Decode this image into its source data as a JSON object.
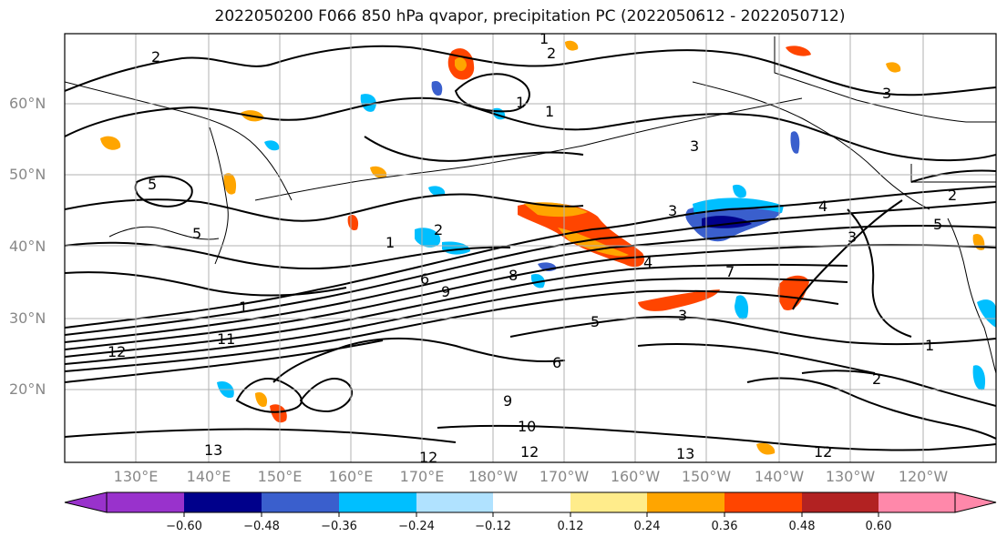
{
  "title": "2022050200 F066 850 hPa qvapor, precipitation PC (2022050612 - 2022050712)",
  "lat_labels": [
    "60°N",
    "50°N",
    "40°N",
    "30°N",
    "20°N"
  ],
  "lon_labels": [
    "130°E",
    "140°E",
    "150°E",
    "160°E",
    "170°E",
    "180°W",
    "170°W",
    "160°W",
    "150°W",
    "140°W",
    "130°W",
    "120°W"
  ],
  "colorbar": {
    "colors": [
      "#9932cc",
      "#00008b",
      "#3a5fcd",
      "#00bfff",
      "#b0e2ff",
      "#ffffff",
      "#ffec8b",
      "#ffa500",
      "#ff4500",
      "#b22222",
      "#ff88aa"
    ],
    "tick_labels": [
      "−0.60",
      "−0.48",
      "−0.36",
      "−0.24",
      "−0.12",
      "0.12",
      "0.24",
      "0.36",
      "0.48",
      "0.60"
    ]
  },
  "contour_labels": [
    "2",
    "1",
    "2",
    "3",
    "3",
    "1",
    "4",
    "3",
    "5",
    "1",
    "2",
    "3",
    "4",
    "5",
    "6",
    "7",
    "8",
    "9",
    "1",
    "2",
    "5",
    "3",
    "1",
    "11",
    "12",
    "13",
    "9",
    "10",
    "12",
    "13",
    "12",
    "12",
    "1",
    "2",
    "5",
    "6"
  ]
}
